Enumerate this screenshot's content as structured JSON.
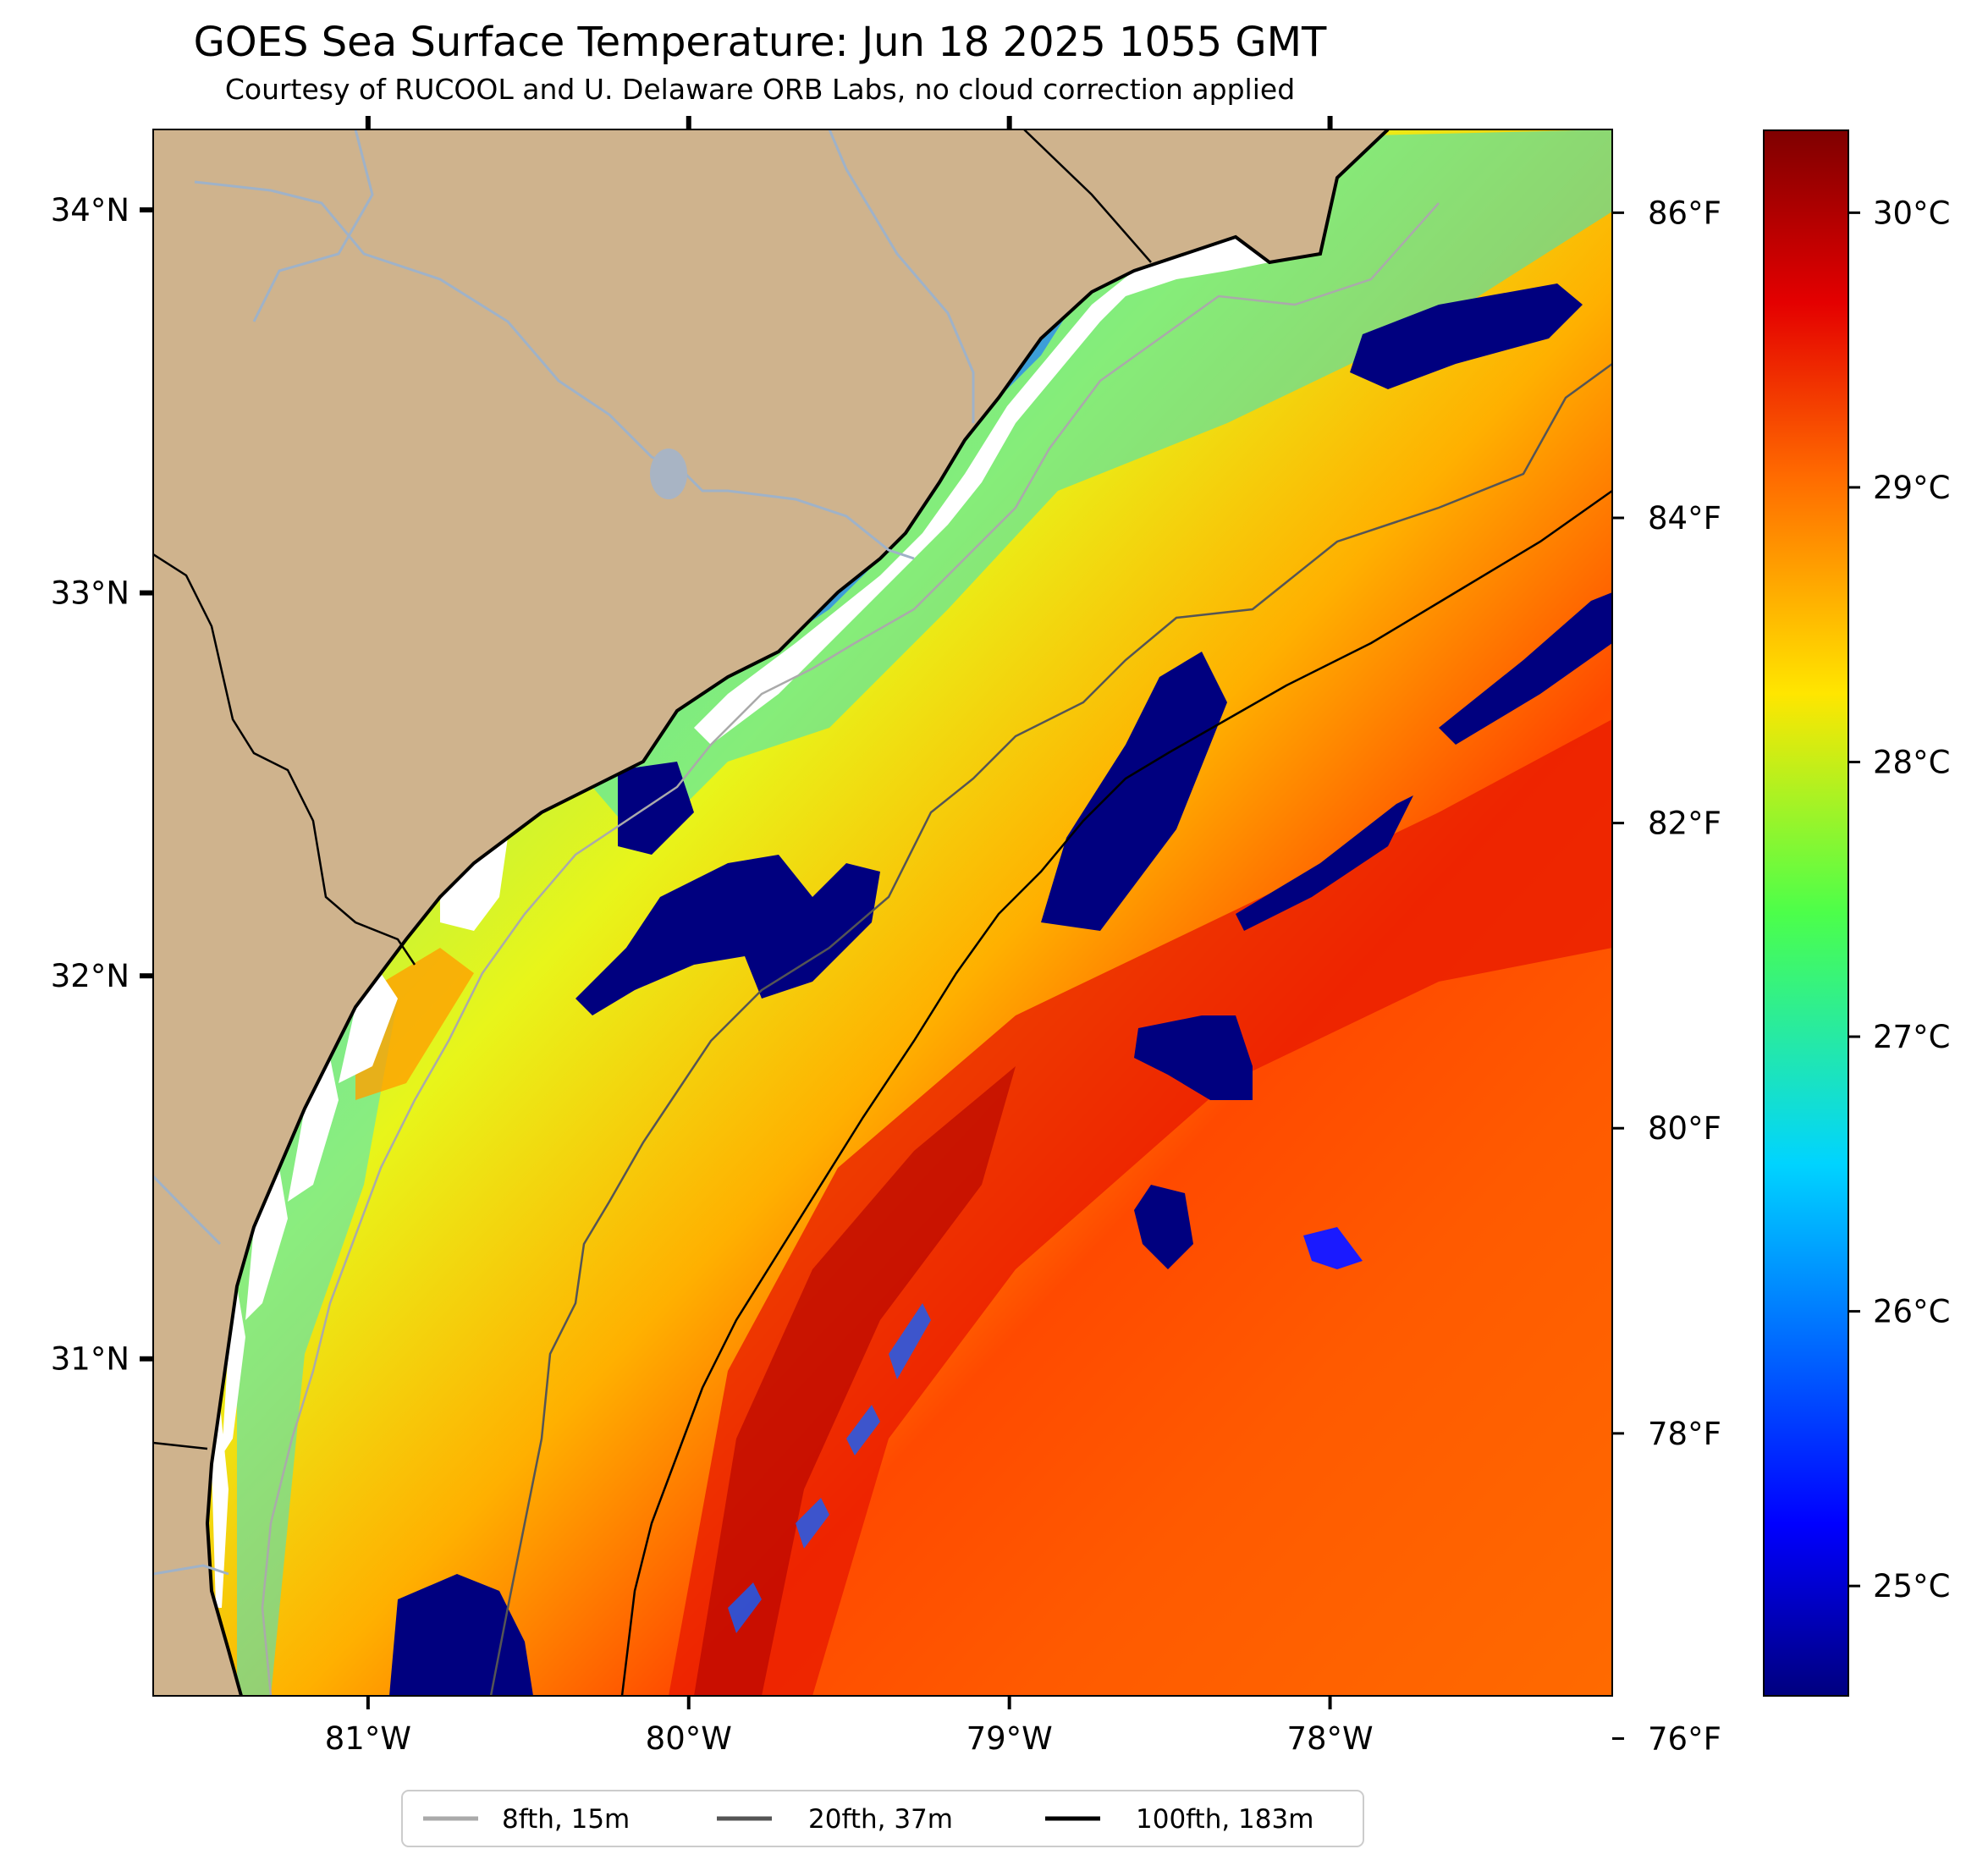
{
  "title": "GOES Sea Surface Temperature: Jun 18 2025 1055 GMT",
  "subtitle": "Courtesy of RUCOOL and U. Delaware ORB Labs, no cloud correction applied",
  "map": {
    "lon_range": [
      -81.67,
      -77.12
    ],
    "lat_range": [
      30.12,
      34.21
    ],
    "lon_ticks": [
      {
        "value": -81,
        "label": "81°W"
      },
      {
        "value": -80,
        "label": "80°W"
      },
      {
        "value": -79,
        "label": "79°W"
      },
      {
        "value": -78,
        "label": "78°W"
      }
    ],
    "lat_ticks": [
      {
        "value": 34,
        "label": "34°N"
      },
      {
        "value": 33,
        "label": "33°N"
      },
      {
        "value": 32,
        "label": "32°N"
      },
      {
        "value": 31,
        "label": "31°N"
      }
    ],
    "fahrenheit_ticks": [
      {
        "value": 86,
        "label": "86°F"
      },
      {
        "value": 84,
        "label": "84°F"
      },
      {
        "value": 82,
        "label": "82°F"
      },
      {
        "value": 80,
        "label": "80°F"
      },
      {
        "value": 78,
        "label": "78°F"
      },
      {
        "value": 76,
        "label": "76°F"
      }
    ],
    "land_color": "#cfb38d",
    "river_color": "#9fb2c8"
  },
  "colorbar": {
    "range_c": [
      24.6,
      30.3
    ],
    "ticks": [
      {
        "value": 30,
        "label": "30°C"
      },
      {
        "value": 29,
        "label": "29°C"
      },
      {
        "value": 28,
        "label": "28°C"
      },
      {
        "value": 27,
        "label": "27°C"
      },
      {
        "value": 26,
        "label": "26°C"
      },
      {
        "value": 25,
        "label": "25°C"
      }
    ],
    "colormap": "jet"
  },
  "legend": {
    "position": "bottom-center",
    "items": [
      {
        "label": "8fth, 15m",
        "color": "#aaaaaa"
      },
      {
        "label": "20fth, 37m",
        "color": "#555555"
      },
      {
        "label": "100fth, 183m",
        "color": "#000000"
      }
    ]
  }
}
